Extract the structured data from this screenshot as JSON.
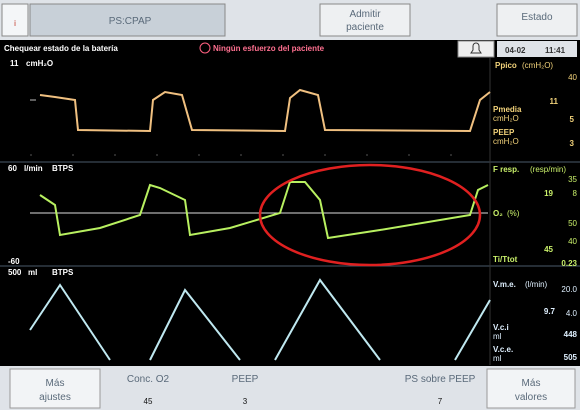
{
  "top_bar": {
    "mode": "PS:CPAP",
    "admit": [
      "Admitir",
      "paciente"
    ],
    "status": "Estado"
  },
  "alarm_bar": {
    "battery": "Chequear estado de la batería",
    "patient": "Ningún esfuerzo del paciente",
    "date": "04-02",
    "time": "11:41"
  },
  "waveforms": [
    {
      "scale_top": "11",
      "unit": "cmH₂O"
    },
    {
      "scale_top": "60",
      "unit": "l/min",
      "condition": "BTPS",
      "scale_bottom": "-60"
    },
    {
      "scale_top": "500",
      "unit": "ml",
      "condition": "BTPS"
    }
  ],
  "measurements": [
    {
      "label": "Ppico",
      "unit": "(cmH₂O)",
      "value": "11",
      "high": "40"
    },
    {
      "label": "Pmedia",
      "unit": "cmH₂O",
      "value": "5"
    },
    {
      "label": "PEEP",
      "unit": "cmH₂O",
      "value": "3"
    },
    {
      "label": "F resp.",
      "unit": "(resp/min)",
      "value": "19",
      "high": "35",
      "low": "8"
    },
    {
      "label": "O₂",
      "unit": "(%)",
      "value": "45",
      "high": "50",
      "low": "40"
    },
    {
      "label": "Ti/Ttot",
      "value": "0.23"
    },
    {
      "label": "V.m.e.",
      "unit": "(l/min)",
      "value": "9.7",
      "high": "20.0",
      "low": "4.0"
    },
    {
      "label": "V.c.i",
      "unit": "ml",
      "value": "448"
    },
    {
      "label": "V.c.e.",
      "unit": "ml",
      "value": "505"
    }
  ],
  "bottom_bar": {
    "more_settings": [
      "Más",
      "ajustes"
    ],
    "settings": [
      {
        "label": "Conc. O2",
        "value": "45"
      },
      {
        "label": "PEEP",
        "value": "3"
      },
      {
        "label": "PS sobre PEEP",
        "value": "7"
      }
    ],
    "more_values": [
      "Más",
      "valores"
    ]
  }
}
